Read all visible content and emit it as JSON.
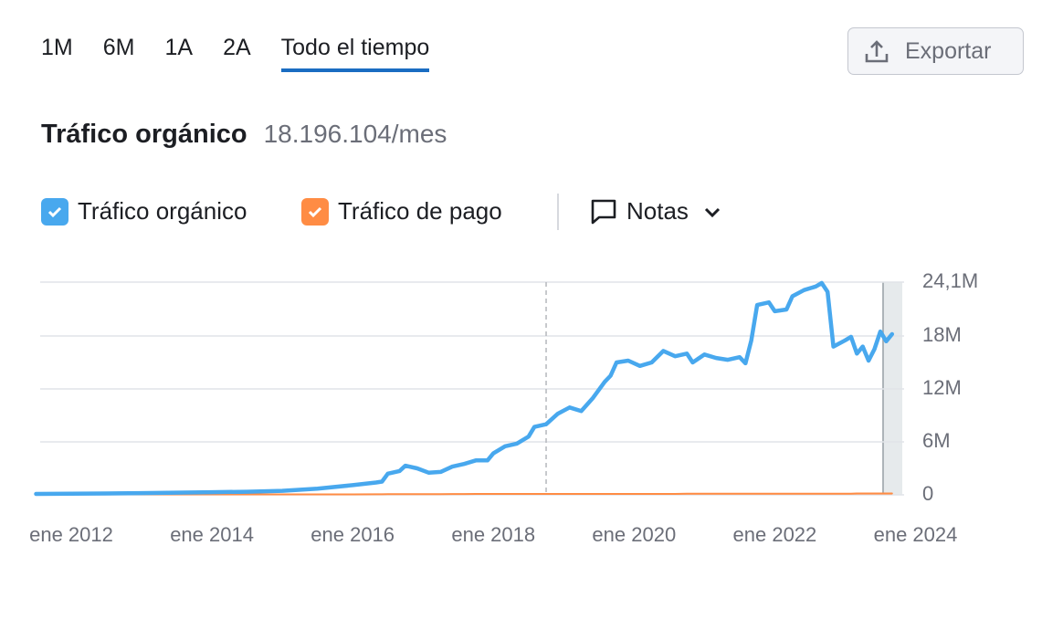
{
  "tabs": [
    "1M",
    "6M",
    "1A",
    "2A",
    "Todo el tiempo"
  ],
  "active_tab": 4,
  "export_button": "Exportar",
  "metric": {
    "label": "Tráfico orgánico",
    "value": "18.196.104/mes"
  },
  "notes_button": "Notas",
  "chart_data": {
    "type": "line",
    "x": [
      "2011-07",
      "2012-01",
      "2012-07",
      "2013-01",
      "2013-07",
      "2014-01",
      "2014-07",
      "2015-01",
      "2015-07",
      "2016-01",
      "2016-05",
      "2016-06",
      "2016-07",
      "2016-09",
      "2016-10",
      "2016-12",
      "2017-02",
      "2017-04",
      "2017-06",
      "2017-08",
      "2017-10",
      "2017-12",
      "2018-01",
      "2018-03",
      "2018-05",
      "2018-07",
      "2018-08",
      "2018-10",
      "2018-12",
      "2019-02",
      "2019-04",
      "2019-06",
      "2019-08",
      "2019-09",
      "2019-10",
      "2019-12",
      "2020-02",
      "2020-04",
      "2020-06",
      "2020-08",
      "2020-10",
      "2020-11",
      "2021-01",
      "2021-03",
      "2021-05",
      "2021-07",
      "2021-08",
      "2021-09",
      "2021-10",
      "2021-12",
      "2022-01",
      "2022-03",
      "2022-04",
      "2022-06",
      "2022-08",
      "2022-09",
      "2022-10",
      "2022-11",
      "2023-01",
      "2023-02",
      "2023-03",
      "2023-04",
      "2023-05",
      "2023-06",
      "2023-07",
      "2023-08",
      "2023-09"
    ],
    "series": [
      {
        "name": "Tráfico orgánico",
        "color": "#48a8ee",
        "values": [
          0.1,
          0.12,
          0.15,
          0.2,
          0.25,
          0.3,
          0.35,
          0.45,
          0.7,
          1.1,
          1.4,
          1.5,
          2.4,
          2.7,
          3.3,
          3.0,
          2.5,
          2.6,
          3.2,
          3.5,
          3.9,
          3.9,
          4.7,
          5.5,
          5.8,
          6.6,
          7.7,
          8.0,
          9.2,
          9.9,
          9.5,
          11.0,
          12.8,
          13.5,
          15.0,
          15.2,
          14.6,
          15.0,
          16.3,
          15.7,
          16.0,
          15.0,
          15.9,
          15.5,
          15.3,
          15.6,
          14.9,
          17.5,
          21.5,
          21.8,
          20.8,
          21.0,
          22.5,
          23.2,
          23.6,
          24.0,
          23.0,
          16.8,
          17.5,
          17.9,
          16.0,
          16.8,
          15.2,
          16.5,
          18.5,
          17.4,
          18.2
        ]
      },
      {
        "name": "Tráfico de pago",
        "color": "#ff8c44",
        "values": [
          0.05,
          0.05,
          0.05,
          0.05,
          0.05,
          0.05,
          0.05,
          0.05,
          0.05,
          0.05,
          0.06,
          0.06,
          0.07,
          0.07,
          0.08,
          0.08,
          0.08,
          0.08,
          0.09,
          0.09,
          0.1,
          0.1,
          0.1,
          0.1,
          0.1,
          0.1,
          0.1,
          0.1,
          0.1,
          0.1,
          0.1,
          0.1,
          0.1,
          0.1,
          0.1,
          0.1,
          0.1,
          0.1,
          0.1,
          0.1,
          0.12,
          0.12,
          0.12,
          0.12,
          0.12,
          0.12,
          0.12,
          0.12,
          0.12,
          0.12,
          0.12,
          0.12,
          0.12,
          0.12,
          0.12,
          0.12,
          0.12,
          0.12,
          0.12,
          0.12,
          0.15,
          0.15,
          0.15,
          0.15,
          0.15,
          0.15,
          0.15
        ]
      }
    ],
    "reference_line_x": "2018-10",
    "xticks": [
      {
        "value": "2012-01",
        "label": "ene 2012"
      },
      {
        "value": "2014-01",
        "label": "ene 2014"
      },
      {
        "value": "2016-01",
        "label": "ene 2016"
      },
      {
        "value": "2018-01",
        "label": "ene 2018"
      },
      {
        "value": "2020-01",
        "label": "ene 2020"
      },
      {
        "value": "2022-01",
        "label": "ene 2022"
      },
      {
        "value": "2024-01",
        "label": "ene 2024"
      }
    ],
    "ylim": [
      0,
      24.1
    ],
    "yticks": [
      0,
      {
        "value": 6,
        "label": "6M"
      },
      {
        "value": 12,
        "label": "12M"
      },
      {
        "value": 18,
        "label": "18M"
      },
      {
        "value": 24.1,
        "label": "24,1M"
      }
    ],
    "grid": true
  }
}
